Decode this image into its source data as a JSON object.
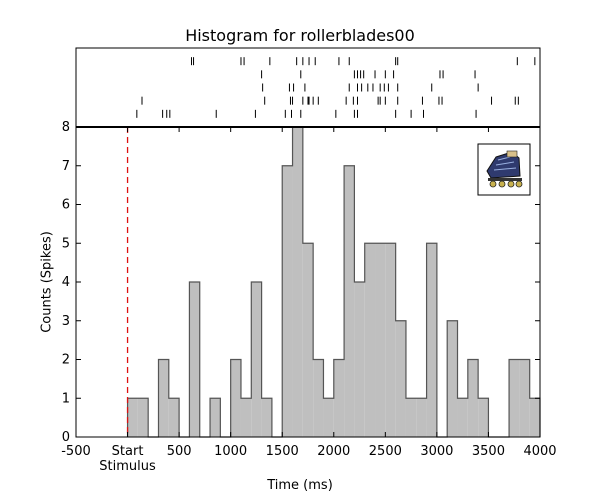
{
  "chart_data": {
    "type": "bar",
    "title": "Histogram for rollerblades00",
    "xlabel": "Time (ms)",
    "ylabel": "Counts (Spikes)",
    "xlim": [
      -500,
      4000
    ],
    "ylim": [
      0,
      8
    ],
    "bin_width": 100,
    "bins": [
      {
        "x": 0,
        "count": 1
      },
      {
        "x": 100,
        "count": 1
      },
      {
        "x": 200,
        "count": 0
      },
      {
        "x": 300,
        "count": 2
      },
      {
        "x": 400,
        "count": 1
      },
      {
        "x": 500,
        "count": 0
      },
      {
        "x": 600,
        "count": 4
      },
      {
        "x": 700,
        "count": 0
      },
      {
        "x": 800,
        "count": 1
      },
      {
        "x": 900,
        "count": 0
      },
      {
        "x": 1000,
        "count": 2
      },
      {
        "x": 1100,
        "count": 1
      },
      {
        "x": 1200,
        "count": 4
      },
      {
        "x": 1300,
        "count": 1
      },
      {
        "x": 1400,
        "count": 0
      },
      {
        "x": 1500,
        "count": 7
      },
      {
        "x": 1600,
        "count": 8
      },
      {
        "x": 1700,
        "count": 5
      },
      {
        "x": 1800,
        "count": 2
      },
      {
        "x": 1900,
        "count": 1
      },
      {
        "x": 2000,
        "count": 2
      },
      {
        "x": 2100,
        "count": 7
      },
      {
        "x": 2200,
        "count": 4
      },
      {
        "x": 2300,
        "count": 5
      },
      {
        "x": 2400,
        "count": 5
      },
      {
        "x": 2500,
        "count": 5
      },
      {
        "x": 2600,
        "count": 3
      },
      {
        "x": 2700,
        "count": 1
      },
      {
        "x": 2800,
        "count": 1
      },
      {
        "x": 2900,
        "count": 5
      },
      {
        "x": 3000,
        "count": 0
      },
      {
        "x": 3100,
        "count": 3
      },
      {
        "x": 3200,
        "count": 1
      },
      {
        "x": 3300,
        "count": 2
      },
      {
        "x": 3400,
        "count": 1
      },
      {
        "x": 3500,
        "count": 0
      },
      {
        "x": 3600,
        "count": 0
      },
      {
        "x": 3700,
        "count": 2
      },
      {
        "x": 3800,
        "count": 2
      },
      {
        "x": 3900,
        "count": 1
      }
    ],
    "x_ticks": [
      "-500",
      "Start",
      "500",
      "1000",
      "1500",
      "2000",
      "2500",
      "3000",
      "3500",
      "4000"
    ],
    "x_tick_values": [
      -500,
      0,
      500,
      1000,
      1500,
      2000,
      2500,
      3000,
      3500,
      4000
    ],
    "start_sublabel": "Stimulus",
    "y_ticks": [
      "0",
      "1",
      "2",
      "3",
      "4",
      "5",
      "6",
      "7",
      "8"
    ],
    "y_tick_values": [
      0,
      1,
      2,
      3,
      4,
      5,
      6,
      7,
      8
    ],
    "stimulus_marker_x": 0,
    "raster_trials": [
      [
        620,
        640,
        1100,
        1130,
        1380,
        1640,
        1700,
        1760,
        1820,
        2050,
        2150,
        2600,
        2620,
        3780,
        3950
      ],
      [
        1300,
        1680,
        2200,
        2230,
        2260,
        2290,
        2400,
        2500,
        2580,
        3030,
        3060,
        3370
      ],
      [
        1310,
        1570,
        1610,
        1720,
        2150,
        2230,
        2270,
        2330,
        2380,
        2450,
        2490,
        2530,
        2620,
        2950,
        3400
      ],
      [
        140,
        1330,
        1580,
        1600,
        1700,
        1750,
        1760,
        1800,
        1850,
        2120,
        2190,
        2230,
        2430,
        2450,
        2500,
        2620,
        2860,
        3020,
        3050,
        3530,
        3760,
        3790
      ],
      [
        90,
        340,
        380,
        410,
        860,
        1240,
        1530,
        1590,
        1680,
        2020,
        2200,
        2230,
        2600,
        2750,
        2870,
        3380
      ]
    ],
    "colors": {
      "bar_fill": "#bfbfbf",
      "bar_edge": "#555555",
      "stimulus_line": "#dd1111",
      "axes": "#000000"
    },
    "inset_image": "rollerblades-icon",
    "grid": false
  }
}
